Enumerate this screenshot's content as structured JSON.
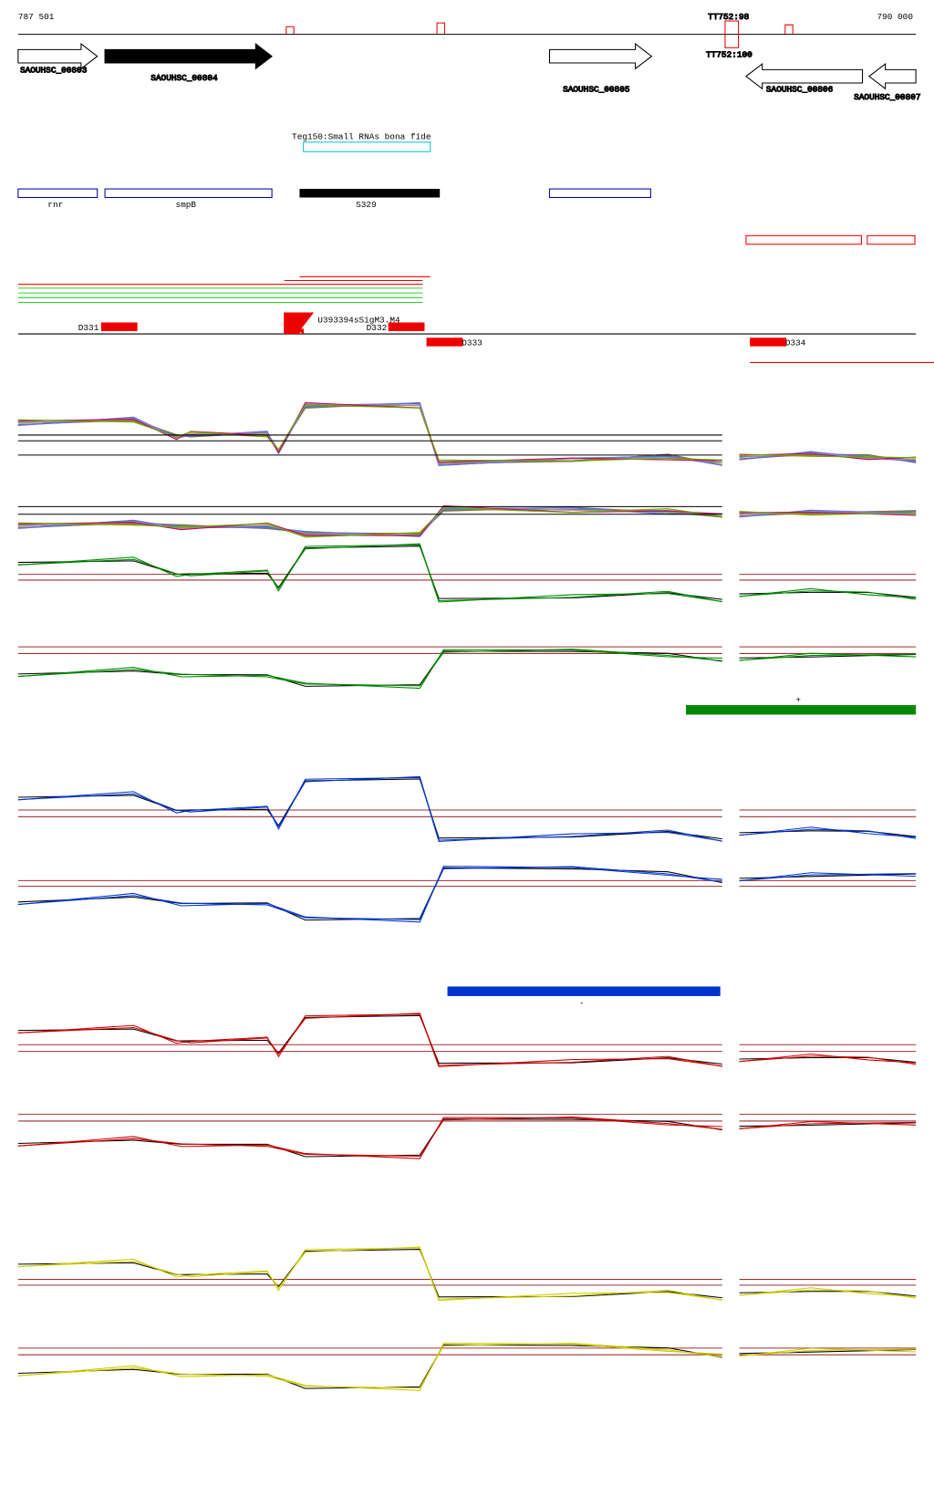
{
  "ruler": {
    "start": "787 501",
    "end": "790 000"
  },
  "genes": [
    "SAOUHSC_00803",
    "SAOUHSC_00804",
    "SAOUHSC_00805",
    "SAOUHSC_00806",
    "SAOUHSC_00807"
  ],
  "terminators": {
    "top": "TT752:98",
    "bottom": "TT752:100"
  },
  "srna": {
    "teg": "Teg150:Small RNAs bona fide",
    "rnr": "rnr",
    "smpB": "smpB",
    "s329": "S329"
  },
  "features": {
    "overlap": "U393394sSigM3.M4",
    "d331": "D331",
    "d332": "D332",
    "d333": "D333",
    "d334": "D334"
  },
  "strands": {
    "plus": "+",
    "minus": "-"
  }
}
